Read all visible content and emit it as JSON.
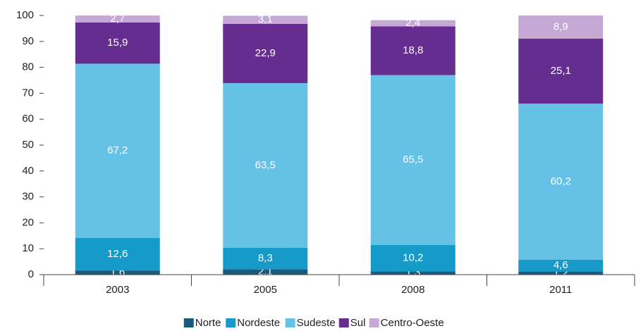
{
  "chart_data": {
    "type": "stacked-bar",
    "categories": [
      "2003",
      "2005",
      "2008",
      "2011"
    ],
    "series": [
      {
        "name": "Norte",
        "color": "#1a5b7c",
        "values": [
          1.6,
          2.1,
          1.3,
          1.2
        ],
        "value_labels": [
          "1,6",
          "2,1",
          "1,3",
          "1,2"
        ]
      },
      {
        "name": "Nordeste",
        "color": "#169bc9",
        "values": [
          12.6,
          8.3,
          10.2,
          4.6
        ],
        "value_labels": [
          "12,6",
          "8,3",
          "10,2",
          "4,6"
        ]
      },
      {
        "name": "Sudeste",
        "color": "#66c1e7",
        "values": [
          67.2,
          63.5,
          65.5,
          60.2
        ],
        "value_labels": [
          "67,2",
          "63,5",
          "65,5",
          "60,2"
        ]
      },
      {
        "name": "Sul",
        "color": "#662d91",
        "values": [
          15.9,
          22.9,
          18.8,
          25.1
        ],
        "value_labels": [
          "15,9",
          "22,9",
          "18,8",
          "25,1"
        ]
      },
      {
        "name": "Centro-Oeste",
        "color": "#c5a8d4",
        "values": [
          2.7,
          3.1,
          2.4,
          8.9
        ],
        "value_labels": [
          "2,7",
          "3,1",
          "2,4",
          "8,9"
        ]
      }
    ],
    "ylim": [
      0,
      100
    ],
    "yticks": [
      0,
      10,
      20,
      30,
      40,
      50,
      60,
      70,
      80,
      90,
      100
    ],
    "grid": false,
    "legend": "bottom"
  }
}
